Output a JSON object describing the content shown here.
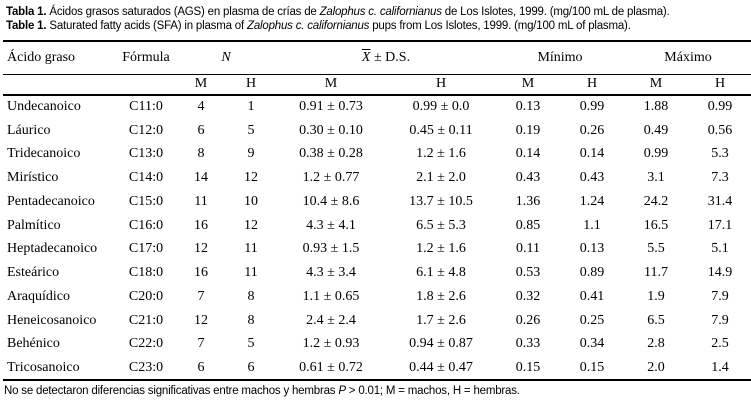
{
  "title": {
    "line1": {
      "prefix": "Tabla 1.",
      "text_before": " Ácidos grasos saturados (AGS) en plasma de crías de ",
      "species": "Zalophus c. californianus",
      "text_after": " de Los Islotes, 1999. (mg/100 mL de plasma)."
    },
    "line2": {
      "prefix": "Table 1.",
      "text_before": " Saturated fatty acids (SFA) in plasma of ",
      "species": "Zalophus c. californianus",
      "text_after": " pups from Los Islotes, 1999. (mg/100 mL of plasma)."
    }
  },
  "table": {
    "headers": {
      "acid": "Ácido graso",
      "formula": "Fórmula",
      "n": "N",
      "mean_x": "X",
      "mean_pm": " ± D.S.",
      "min": "Mínimo",
      "max": "Máximo",
      "male": "M",
      "female": "H"
    },
    "rows": [
      {
        "name": "Undecanoico",
        "formula": "C11:0",
        "n_m": "4",
        "n_h": "1",
        "mean_m": "0.91 ± 0.73",
        "mean_h": "0.99 ± 0.0",
        "min_m": "0.13",
        "min_h": "0.99",
        "max_m": "1.88",
        "max_h": "0.99"
      },
      {
        "name": "Láurico",
        "formula": "C12:0",
        "n_m": "6",
        "n_h": "5",
        "mean_m": "0.30 ± 0.10",
        "mean_h": "0.45 ± 0.11",
        "min_m": "0.19",
        "min_h": "0.26",
        "max_m": "0.49",
        "max_h": "0.56"
      },
      {
        "name": "Tridecanoico",
        "formula": "C13:0",
        "n_m": "8",
        "n_h": "9",
        "mean_m": "0.38 ± 0.28",
        "mean_h": "1.2 ± 1.6",
        "min_m": "0.14",
        "min_h": "0.14",
        "max_m": "0.99",
        "max_h": "5.3"
      },
      {
        "name": "Mirístico",
        "formula": "C14:0",
        "n_m": "14",
        "n_h": "12",
        "mean_m": "1.2 ± 0.77",
        "mean_h": "2.1 ± 2.0",
        "min_m": "0.43",
        "min_h": "0.43",
        "max_m": "3.1",
        "max_h": "7.3"
      },
      {
        "name": "Pentadecanoico",
        "formula": "C15:0",
        "n_m": "11",
        "n_h": "10",
        "mean_m": "10.4 ± 8.6",
        "mean_h": "13.7 ± 10.5",
        "min_m": "1.36",
        "min_h": "1.24",
        "max_m": "24.2",
        "max_h": "31.4"
      },
      {
        "name": "Palmítico",
        "formula": "C16:0",
        "n_m": "16",
        "n_h": "12",
        "mean_m": "4.3 ± 4.1",
        "mean_h": "6.5 ± 5.3",
        "min_m": "0.85",
        "min_h": "1.1",
        "max_m": "16.5",
        "max_h": "17.1"
      },
      {
        "name": "Heptadecanoico",
        "formula": "C17:0",
        "n_m": "12",
        "n_h": "11",
        "mean_m": "0.93 ± 1.5",
        "mean_h": "1.2 ± 1.6",
        "min_m": "0.11",
        "min_h": "0.13",
        "max_m": "5.5",
        "max_h": "5.1"
      },
      {
        "name": "Esteárico",
        "formula": "C18:0",
        "n_m": "16",
        "n_h": "11",
        "mean_m": "4.3 ± 3.4",
        "mean_h": "6.1 ± 4.8",
        "min_m": "0.53",
        "min_h": "0.89",
        "max_m": "11.7",
        "max_h": "14.9"
      },
      {
        "name": "Araquídico",
        "formula": "C20:0",
        "n_m": "7",
        "n_h": "8",
        "mean_m": "1.1 ± 0.65",
        "mean_h": "1.8 ± 2.6",
        "min_m": "0.32",
        "min_h": "0.41",
        "max_m": "1.9",
        "max_h": "7.9"
      },
      {
        "name": "Heneicosanoico",
        "formula": "C21:0",
        "n_m": "12",
        "n_h": "8",
        "mean_m": "2.4 ± 2.4",
        "mean_h": "1.7 ± 2.6",
        "min_m": "0.26",
        "min_h": "0.25",
        "max_m": "6.5",
        "max_h": "7.9"
      },
      {
        "name": "Behénico",
        "formula": "C22:0",
        "n_m": "7",
        "n_h": "5",
        "mean_m": "1.2 ± 0.93",
        "mean_h": "0.94 ± 0.87",
        "min_m": "0.33",
        "min_h": "0.34",
        "max_m": "2.8",
        "max_h": "2.5"
      },
      {
        "name": "Tricosanoico",
        "formula": "C23:0",
        "n_m": "6",
        "n_h": "6",
        "mean_m": "0.61 ± 0.72",
        "mean_h": "0.44 ± 0.47",
        "min_m": "0.15",
        "min_h": "0.15",
        "max_m": "2.0",
        "max_h": "1.4"
      }
    ]
  },
  "footnote": {
    "text_before": "No se detectaron diferencias significativas entre machos y hembras ",
    "p": "P",
    "text_after": " > 0.01; M = machos, H = hembras."
  }
}
